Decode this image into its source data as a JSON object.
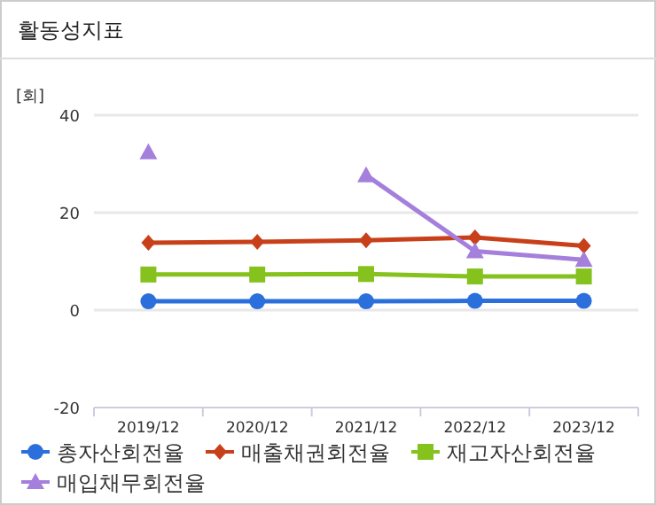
{
  "chart_data": {
    "type": "line",
    "title": "활동성지표",
    "ylabel": "[회]",
    "categories": [
      "2019/12",
      "2020/12",
      "2021/12",
      "2022/12",
      "2023/12"
    ],
    "series": [
      {
        "name": "총자산회전율",
        "color": "#2a6fdb",
        "marker": "circle",
        "values": [
          1.8,
          1.8,
          1.8,
          1.9,
          1.9
        ]
      },
      {
        "name": "매출채권회전율",
        "color": "#c8401a",
        "marker": "diamond",
        "values": [
          13.8,
          14.0,
          14.3,
          14.9,
          13.2
        ]
      },
      {
        "name": "재고자산회전율",
        "color": "#86c21e",
        "marker": "square",
        "values": [
          7.3,
          7.3,
          7.4,
          6.9,
          6.9
        ]
      },
      {
        "name": "매입채무회전율",
        "color": "#a57fdc",
        "marker": "triangle",
        "values": [
          32.4,
          null,
          27.7,
          12.1,
          10.3
        ]
      }
    ],
    "ylim": [
      -20,
      40
    ],
    "yticks": [
      -20,
      0,
      20,
      40
    ],
    "grid": "y",
    "legend": "bottom"
  }
}
